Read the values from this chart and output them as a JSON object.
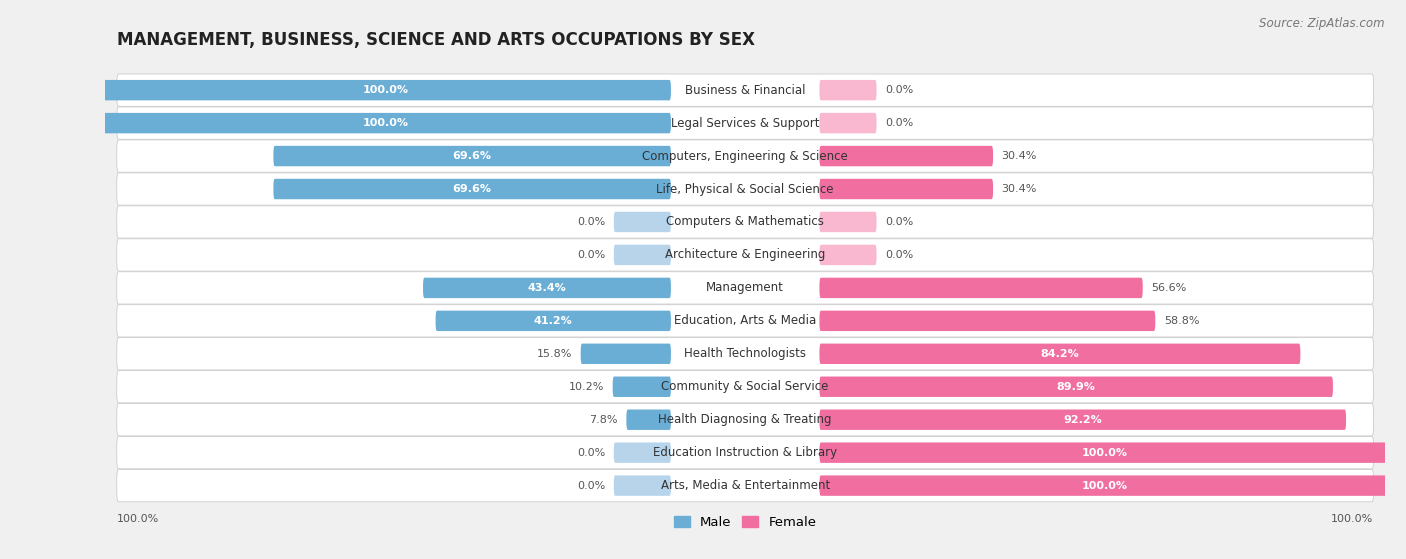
{
  "title": "MANAGEMENT, BUSINESS, SCIENCE AND ARTS OCCUPATIONS BY SEX",
  "source": "Source: ZipAtlas.com",
  "categories": [
    "Business & Financial",
    "Legal Services & Support",
    "Computers, Engineering & Science",
    "Life, Physical & Social Science",
    "Computers & Mathematics",
    "Architecture & Engineering",
    "Management",
    "Education, Arts & Media",
    "Health Technologists",
    "Community & Social Service",
    "Health Diagnosing & Treating",
    "Education Instruction & Library",
    "Arts, Media & Entertainment"
  ],
  "male": [
    100.0,
    100.0,
    69.6,
    69.6,
    0.0,
    0.0,
    43.4,
    41.2,
    15.8,
    10.2,
    7.8,
    0.0,
    0.0
  ],
  "female": [
    0.0,
    0.0,
    30.4,
    30.4,
    0.0,
    0.0,
    56.6,
    58.8,
    84.2,
    89.9,
    92.2,
    100.0,
    100.0
  ],
  "male_color": "#6aaed6",
  "female_color": "#f06fa0",
  "male_light_color": "#b8d4eb",
  "female_light_color": "#f9b8cf",
  "bg_color": "#f0f0f0",
  "row_bg_color": "#ffffff",
  "row_alt_color": "#f8f8f8",
  "title_fontsize": 12,
  "label_fontsize": 8.5,
  "pct_fontsize": 8,
  "source_fontsize": 8.5,
  "legend_fontsize": 9.5
}
